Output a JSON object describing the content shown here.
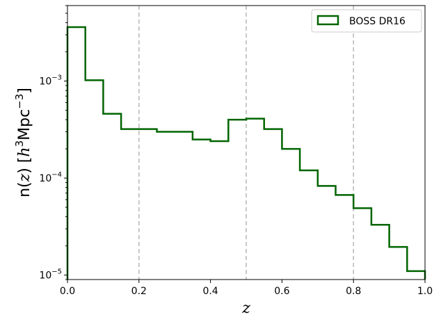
{
  "chart_data": {
    "type": "line",
    "step": "histogram",
    "xlabel": "z",
    "ylabel": {
      "prefix": "n(",
      "var": "z",
      "mid": ") [",
      "h": "h",
      "h_exp": "3",
      "unit": "Mpc",
      "unit_exp": "−3",
      "suffix": "]"
    },
    "xlim": [
      0.0,
      1.0
    ],
    "ylim": [
      9e-06,
      0.006
    ],
    "yscale": "log",
    "xticks": [
      "0.0",
      "0.2",
      "0.4",
      "0.6",
      "0.8",
      "1.0"
    ],
    "yticks": [
      {
        "base": "10",
        "exp": "−5",
        "value": 1e-05
      },
      {
        "base": "10",
        "exp": "−4",
        "value": 0.0001
      },
      {
        "base": "10",
        "exp": "−3",
        "value": 0.001
      }
    ],
    "vlines": [
      0.2,
      0.5,
      0.8
    ],
    "bin_edges": [
      0.0,
      0.05,
      0.1,
      0.15,
      0.2,
      0.25,
      0.3,
      0.35,
      0.4,
      0.45,
      0.5,
      0.55,
      0.6,
      0.65,
      0.7,
      0.75,
      0.8,
      0.85,
      0.9,
      0.95,
      1.0
    ],
    "series": [
      {
        "name": "BOSS DR16",
        "color": "#006400",
        "values": [
          0.0036,
          0.00102,
          0.00046,
          0.00032,
          0.00032,
          0.0003,
          0.0003,
          0.00025,
          0.00024,
          0.0004,
          0.00041,
          0.00032,
          0.0002,
          0.00012,
          8.3e-05,
          6.7e-05,
          4.9e-05,
          3.3e-05,
          1.95e-05,
          1.1e-05
        ]
      }
    ],
    "legend": "top-right",
    "grid": false
  }
}
